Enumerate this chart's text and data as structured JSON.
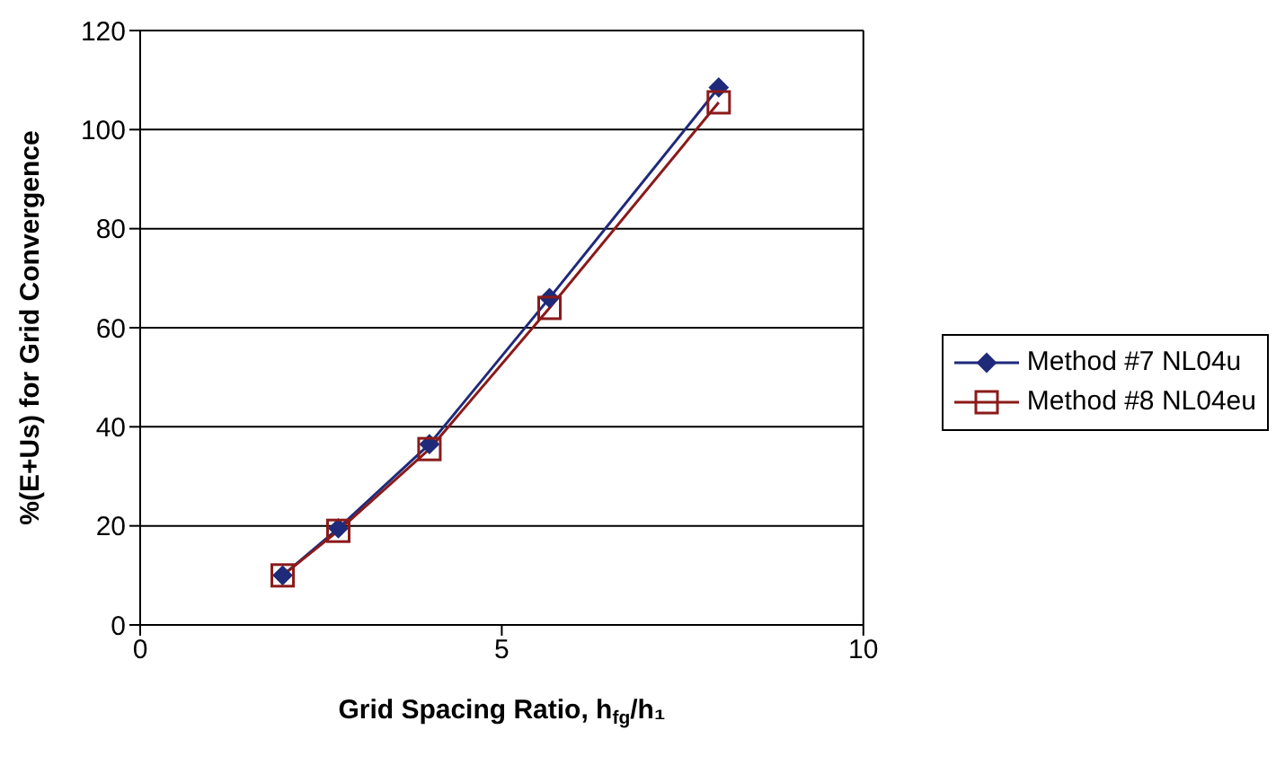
{
  "chart_data": {
    "type": "line",
    "xlabel": "Grid Spacing Ratio, h$_{fg}$/h₁",
    "ylabel": "%(E+Us) for Grid Convergence",
    "xlim": [
      0,
      10
    ],
    "xticks": [
      0,
      5,
      10
    ],
    "ylim": [
      0,
      120
    ],
    "yticks": [
      0,
      20,
      40,
      60,
      80,
      100,
      120
    ],
    "grid": "y",
    "legend": "right",
    "series": [
      {
        "name": "Method #7 NL04u",
        "color": "#1f2a7a",
        "marker": "diamond",
        "x": [
          1.97,
          2.74,
          4.0,
          5.66,
          8.0
        ],
        "values": [
          10,
          19.5,
          36.5,
          66,
          108.5
        ]
      },
      {
        "name": "Method #8 NL04eu",
        "color": "#8b1a1a",
        "marker": "square",
        "x": [
          1.97,
          2.74,
          4.0,
          5.66,
          8.0
        ],
        "values": [
          10,
          19,
          35.5,
          64,
          105.5
        ]
      }
    ]
  }
}
